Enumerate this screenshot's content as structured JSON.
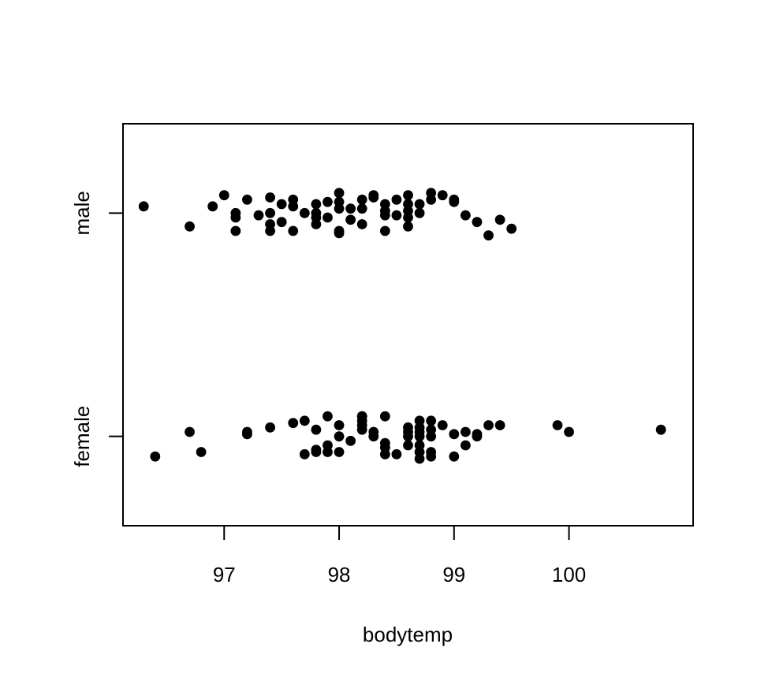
{
  "chart_data": {
    "type": "scatter",
    "title": "",
    "xlabel": "bodytemp",
    "ylabel": "",
    "xlim": [
      96.12,
      101.08
    ],
    "x_ticks": [
      97,
      98,
      99,
      100
    ],
    "categories": [
      "female",
      "male"
    ],
    "grid": false,
    "legend": "none",
    "point_color": "#000000",
    "series": [
      {
        "category": "male",
        "points": [
          [
            96.3,
            0.03
          ],
          [
            96.7,
            -0.06
          ],
          [
            96.9,
            0.03
          ],
          [
            97.0,
            0.08
          ],
          [
            97.1,
            0.0
          ],
          [
            97.1,
            -0.02
          ],
          [
            97.1,
            -0.08
          ],
          [
            97.2,
            0.06
          ],
          [
            97.3,
            -0.01
          ],
          [
            97.4,
            0.07
          ],
          [
            97.4,
            -0.05
          ],
          [
            97.4,
            -0.08
          ],
          [
            97.4,
            0.0
          ],
          [
            97.5,
            0.04
          ],
          [
            97.5,
            -0.04
          ],
          [
            97.6,
            0.06
          ],
          [
            97.6,
            0.03
          ],
          [
            97.6,
            -0.08
          ],
          [
            97.7,
            0.0
          ],
          [
            97.8,
            0.04
          ],
          [
            97.8,
            0.0
          ],
          [
            97.8,
            -0.05
          ],
          [
            97.8,
            -0.02
          ],
          [
            97.9,
            -0.02
          ],
          [
            97.9,
            0.05
          ],
          [
            98.0,
            0.09
          ],
          [
            98.0,
            0.05
          ],
          [
            98.0,
            0.02
          ],
          [
            98.0,
            -0.08
          ],
          [
            98.0,
            -0.09
          ],
          [
            98.1,
            0.02
          ],
          [
            98.1,
            -0.03
          ],
          [
            98.2,
            0.06
          ],
          [
            98.2,
            0.02
          ],
          [
            98.2,
            -0.05
          ],
          [
            98.3,
            0.08
          ],
          [
            98.3,
            0.07
          ],
          [
            98.4,
            0.04
          ],
          [
            98.4,
            0.01
          ],
          [
            98.4,
            -0.01
          ],
          [
            98.4,
            -0.08
          ],
          [
            98.5,
            0.06
          ],
          [
            98.5,
            -0.01
          ],
          [
            98.6,
            0.08
          ],
          [
            98.6,
            0.04
          ],
          [
            98.6,
            0.01
          ],
          [
            98.6,
            -0.02
          ],
          [
            98.6,
            -0.06
          ],
          [
            98.7,
            0.04
          ],
          [
            98.7,
            0.0
          ],
          [
            98.8,
            0.09
          ],
          [
            98.8,
            0.06
          ],
          [
            98.9,
            0.08
          ],
          [
            99.0,
            0.06
          ],
          [
            99.0,
            0.05
          ],
          [
            99.1,
            -0.01
          ],
          [
            99.2,
            -0.04
          ],
          [
            99.3,
            -0.1
          ],
          [
            99.4,
            -0.03
          ],
          [
            99.5,
            -0.07
          ]
        ]
      },
      {
        "category": "female",
        "points": [
          [
            96.4,
            -0.09
          ],
          [
            96.7,
            0.02
          ],
          [
            96.8,
            -0.07
          ],
          [
            97.2,
            0.01
          ],
          [
            97.2,
            0.02
          ],
          [
            97.4,
            0.04
          ],
          [
            97.6,
            0.06
          ],
          [
            97.7,
            0.07
          ],
          [
            97.7,
            -0.08
          ],
          [
            97.8,
            -0.07
          ],
          [
            97.8,
            0.03
          ],
          [
            97.8,
            -0.06
          ],
          [
            97.9,
            -0.07
          ],
          [
            97.9,
            -0.04
          ],
          [
            97.9,
            0.09
          ],
          [
            98.0,
            -0.07
          ],
          [
            98.0,
            0.0
          ],
          [
            98.0,
            0.05
          ],
          [
            98.1,
            -0.02
          ],
          [
            98.2,
            0.03
          ],
          [
            98.2,
            0.05
          ],
          [
            98.2,
            0.07
          ],
          [
            98.2,
            0.09
          ],
          [
            98.2,
            0.09
          ],
          [
            98.3,
            0.0
          ],
          [
            98.3,
            0.02
          ],
          [
            98.4,
            -0.08
          ],
          [
            98.4,
            -0.05
          ],
          [
            98.4,
            -0.03
          ],
          [
            98.4,
            0.09
          ],
          [
            98.5,
            -0.08
          ],
          [
            98.6,
            -0.04
          ],
          [
            98.6,
            0.0
          ],
          [
            98.6,
            0.02
          ],
          [
            98.6,
            0.04
          ],
          [
            98.7,
            -0.1
          ],
          [
            98.7,
            -0.07
          ],
          [
            98.7,
            -0.04
          ],
          [
            98.7,
            0.0
          ],
          [
            98.7,
            0.02
          ],
          [
            98.7,
            0.04
          ],
          [
            98.7,
            0.07
          ],
          [
            98.8,
            -0.09
          ],
          [
            98.8,
            -0.07
          ],
          [
            98.8,
            0.0
          ],
          [
            98.8,
            0.03
          ],
          [
            98.8,
            0.07
          ],
          [
            98.9,
            0.05
          ],
          [
            99.0,
            -0.09
          ],
          [
            99.0,
            0.01
          ],
          [
            99.1,
            -0.04
          ],
          [
            99.1,
            0.02
          ],
          [
            99.2,
            0.01
          ],
          [
            99.2,
            0.0
          ],
          [
            99.3,
            0.05
          ],
          [
            99.4,
            0.05
          ],
          [
            99.9,
            0.05
          ],
          [
            100.0,
            0.02
          ],
          [
            100.8,
            0.03
          ]
        ]
      }
    ]
  }
}
